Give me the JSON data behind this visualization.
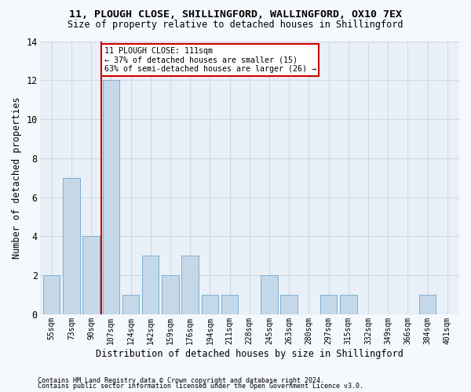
{
  "title": "11, PLOUGH CLOSE, SHILLINGFORD, WALLINGFORD, OX10 7EX",
  "subtitle": "Size of property relative to detached houses in Shillingford",
  "xlabel": "Distribution of detached houses by size in Shillingford",
  "ylabel": "Number of detached properties",
  "categories": [
    "55sqm",
    "73sqm",
    "90sqm",
    "107sqm",
    "124sqm",
    "142sqm",
    "159sqm",
    "176sqm",
    "194sqm",
    "211sqm",
    "228sqm",
    "245sqm",
    "263sqm",
    "280sqm",
    "297sqm",
    "315sqm",
    "332sqm",
    "349sqm",
    "366sqm",
    "384sqm",
    "401sqm"
  ],
  "values": [
    2,
    7,
    4,
    12,
    1,
    3,
    2,
    3,
    1,
    1,
    0,
    2,
    1,
    0,
    1,
    1,
    0,
    0,
    0,
    1,
    0
  ],
  "bar_color": "#c5d8e8",
  "bar_edge_color": "#7bafd4",
  "property_label": "11 PLOUGH CLOSE: 111sqm",
  "annotation_line1": "← 37% of detached houses are smaller (15)",
  "annotation_line2": "63% of semi-detached houses are larger (26) →",
  "annotation_box_color": "#ffffff",
  "annotation_box_edge_color": "#cc0000",
  "vline_color": "#cc0000",
  "ylim": [
    0,
    14
  ],
  "yticks": [
    0,
    2,
    4,
    6,
    8,
    10,
    12,
    14
  ],
  "grid_color": "#d0d8e8",
  "bg_color": "#eaf0f8",
  "fig_bg_color": "#f5f8fc",
  "footnote1": "Contains HM Land Registry data © Crown copyright and database right 2024.",
  "footnote2": "Contains public sector information licensed under the Open Government Licence v3.0."
}
